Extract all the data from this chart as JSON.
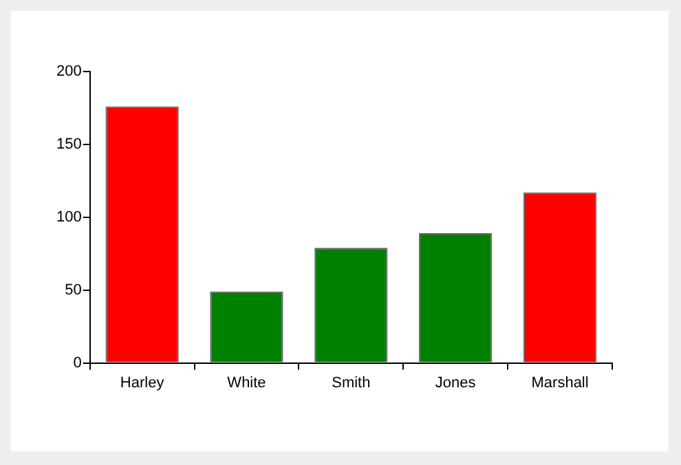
{
  "chart_data": {
    "type": "bar",
    "categories": [
      "Harley",
      "White",
      "Smith",
      "Jones",
      "Marshall"
    ],
    "values": [
      176,
      49,
      79,
      89,
      117
    ],
    "colors": [
      "#ff0000",
      "#008000",
      "#008000",
      "#008000",
      "#ff0000"
    ],
    "ylim": [
      0,
      200
    ],
    "yticks": [
      0,
      50,
      100,
      150,
      200
    ]
  }
}
